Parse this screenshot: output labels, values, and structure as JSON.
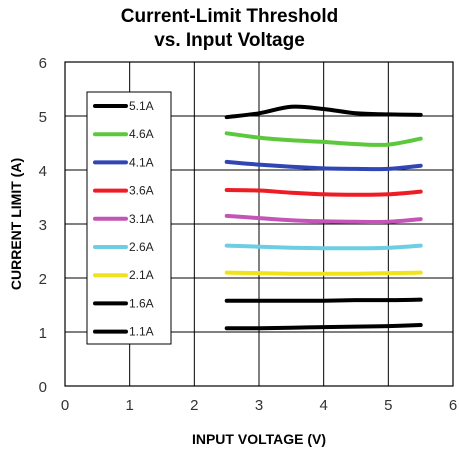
{
  "chart_data": {
    "type": "line",
    "title": [
      "Current-Limit Threshold",
      "vs. Input Voltage"
    ],
    "xlabel": "INPUT VOLTAGE (V)",
    "ylabel": "CURRENT LIMIT (A)",
    "xlim": [
      0,
      6
    ],
    "ylim": [
      0,
      6
    ],
    "xticks": [
      "0",
      "1",
      "2",
      "3",
      "4",
      "5",
      "6"
    ],
    "yticks": [
      "0",
      "1",
      "2",
      "3",
      "4",
      "5",
      "6"
    ],
    "grid": true,
    "legend_position": "left",
    "x": [
      2.5,
      3.0,
      3.5,
      4.0,
      4.5,
      5.0,
      5.5
    ],
    "series": [
      {
        "name": "5.1A",
        "color": "#000000",
        "values": [
          4.98,
          5.05,
          5.17,
          5.13,
          5.05,
          5.03,
          5.02
        ]
      },
      {
        "name": "4.6A",
        "color": "#5cc83c",
        "values": [
          4.68,
          4.6,
          4.55,
          4.52,
          4.48,
          4.47,
          4.58
        ]
      },
      {
        "name": "4.1A",
        "color": "#2f46b4",
        "values": [
          4.15,
          4.1,
          4.06,
          4.03,
          4.02,
          4.02,
          4.08
        ]
      },
      {
        "name": "3.6A",
        "color": "#ee1c24",
        "values": [
          3.63,
          3.62,
          3.58,
          3.55,
          3.54,
          3.55,
          3.6
        ]
      },
      {
        "name": "3.1A",
        "color": "#c455b8",
        "values": [
          3.15,
          3.11,
          3.07,
          3.05,
          3.04,
          3.04,
          3.09
        ]
      },
      {
        "name": "2.6A",
        "color": "#6ccde4",
        "values": [
          2.6,
          2.58,
          2.56,
          2.55,
          2.55,
          2.56,
          2.6
        ]
      },
      {
        "name": "2.1A",
        "color": "#f0e31c",
        "values": [
          2.1,
          2.09,
          2.08,
          2.08,
          2.08,
          2.09,
          2.1
        ]
      },
      {
        "name": "1.6A",
        "color": "#000000",
        "values": [
          1.58,
          1.58,
          1.58,
          1.58,
          1.59,
          1.59,
          1.6
        ]
      },
      {
        "name": "1.1A",
        "color": "#000000",
        "values": [
          1.07,
          1.07,
          1.08,
          1.09,
          1.1,
          1.11,
          1.13
        ]
      }
    ]
  }
}
